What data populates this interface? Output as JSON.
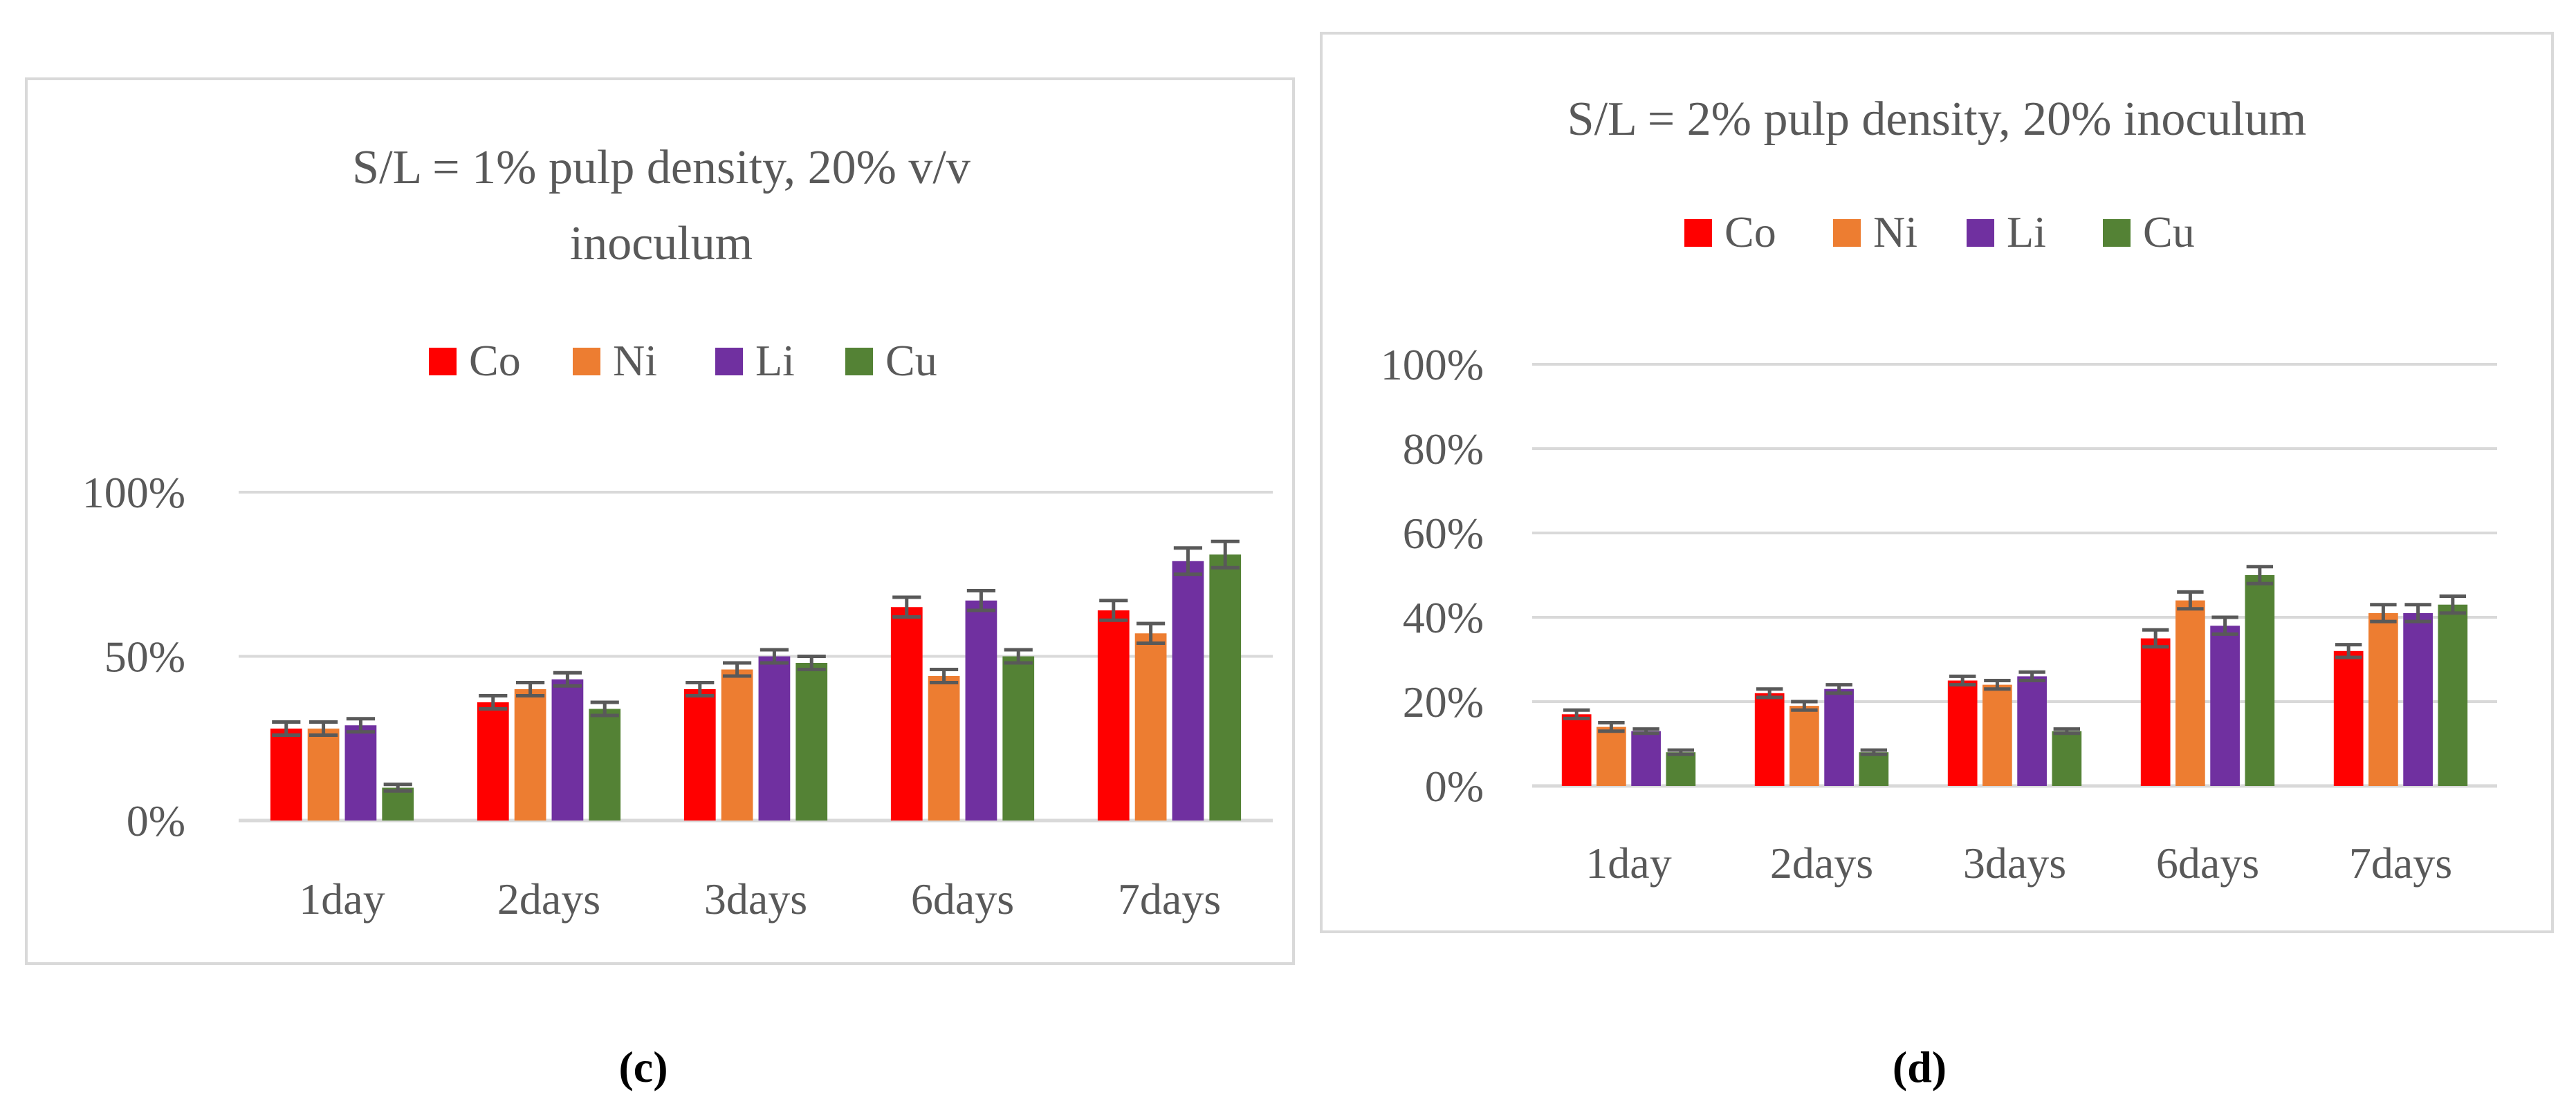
{
  "chart_data": [
    {
      "type": "bar",
      "title_lines": [
        "S/L = 1% pulp density, 20% v/v",
        "inoculum"
      ],
      "categories": [
        "1day",
        "2days",
        "3days",
        "6days",
        "7days"
      ],
      "series": [
        {
          "name": "Co",
          "color": "#FF0000",
          "values": [
            28,
            36,
            40,
            65,
            64
          ],
          "errors": [
            2,
            2,
            2,
            3,
            3
          ]
        },
        {
          "name": "Ni",
          "color": "#ED7D31",
          "values": [
            28,
            40,
            46,
            44,
            57
          ],
          "errors": [
            2,
            2,
            2,
            2,
            3
          ]
        },
        {
          "name": "Li",
          "color": "#7030A0",
          "values": [
            29,
            43,
            50,
            67,
            79
          ],
          "errors": [
            2,
            2,
            2,
            3,
            4
          ]
        },
        {
          "name": "Cu",
          "color": "#548235",
          "values": [
            10,
            34,
            48,
            50,
            81
          ],
          "errors": [
            1,
            2,
            2,
            2,
            4
          ]
        }
      ],
      "yticks": [
        "0%",
        "50%",
        "100%"
      ],
      "ylim": [
        0,
        100
      ],
      "grid": true,
      "legend": "top",
      "caption": "(c)"
    },
    {
      "type": "bar",
      "title_lines": [
        "S/L = 2% pulp density, 20% inoculum"
      ],
      "categories": [
        "1day",
        "2days",
        "3days",
        "6days",
        "7days"
      ],
      "series": [
        {
          "name": "Co",
          "color": "#FF0000",
          "values": [
            17,
            22,
            25,
            35,
            32
          ],
          "errors": [
            1,
            1,
            1,
            2,
            1.5
          ]
        },
        {
          "name": "Ni",
          "color": "#ED7D31",
          "values": [
            14,
            19,
            24,
            44,
            41
          ],
          "errors": [
            1,
            1,
            1,
            2,
            2
          ]
        },
        {
          "name": "Li",
          "color": "#7030A0",
          "values": [
            13,
            23,
            26,
            38,
            41
          ],
          "errors": [
            0.5,
            1,
            1,
            2,
            2
          ]
        },
        {
          "name": "Cu",
          "color": "#548235",
          "values": [
            8,
            8,
            13,
            50,
            43
          ],
          "errors": [
            0.5,
            0.5,
            0.5,
            2,
            2
          ]
        }
      ],
      "yticks": [
        "0%",
        "20%",
        "40%",
        "60%",
        "80%",
        "100%"
      ],
      "ylim": [
        0,
        100
      ],
      "grid": true,
      "legend": "top",
      "caption": "(d)"
    }
  ]
}
